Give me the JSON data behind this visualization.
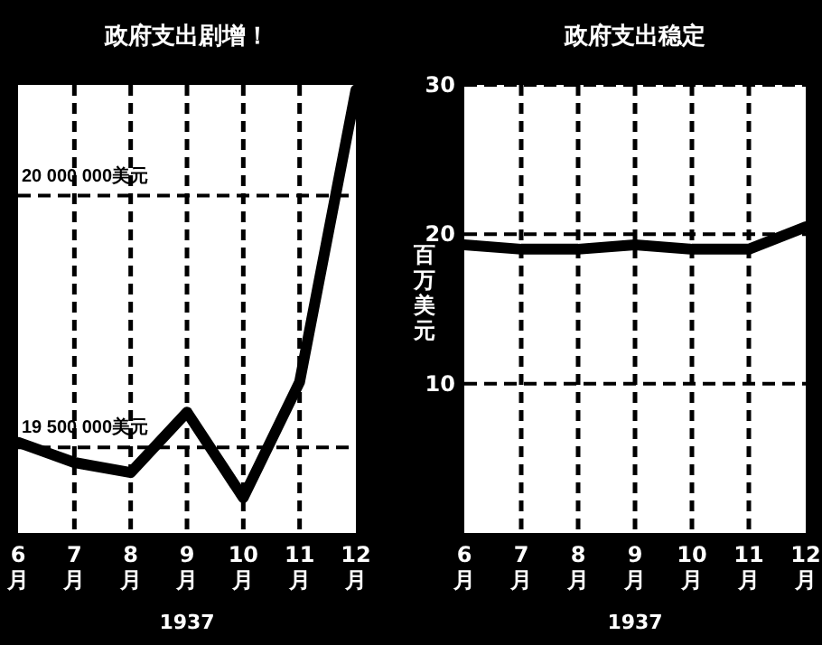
{
  "chart_data": [
    {
      "type": "line",
      "title": "政府支出剧增！",
      "xlabel": "1937",
      "categories": [
        "6月",
        "7月",
        "8月",
        "9月",
        "10月",
        "11月",
        "12月"
      ],
      "series": [
        {
          "color": "#000000",
          "values": [
            19510000,
            19470000,
            19450000,
            19570000,
            19400000,
            19630000,
            20210000
          ]
        }
      ],
      "ylim": [
        19330000,
        20220000
      ],
      "tick_labels": "x",
      "grid": "x",
      "marker": "none",
      "line_style": "solid",
      "ref_lines": [
        {
          "axis": "y",
          "value": 20000000,
          "label": "20 000 000美元",
          "line_style": "dashed",
          "color": "#000000"
        },
        {
          "axis": "y",
          "value": 19500000,
          "label": "19 500 000美元",
          "line_style": "dashed",
          "color": "#000000"
        }
      ]
    },
    {
      "type": "line",
      "title": "政府支出稳定",
      "xlabel": "1937",
      "ylabel": "百万美元",
      "categories": [
        "6月",
        "7月",
        "8月",
        "9月",
        "10月",
        "11月",
        "12月"
      ],
      "series": [
        {
          "color": "#000000",
          "values": [
            19.3,
            19.0,
            19.0,
            19.3,
            19.0,
            19.0,
            20.5
          ]
        }
      ],
      "ylim": [
        0,
        30
      ],
      "yticks": [
        10,
        20,
        30
      ],
      "grid": true,
      "marker": "none",
      "line_style": "solid"
    }
  ]
}
